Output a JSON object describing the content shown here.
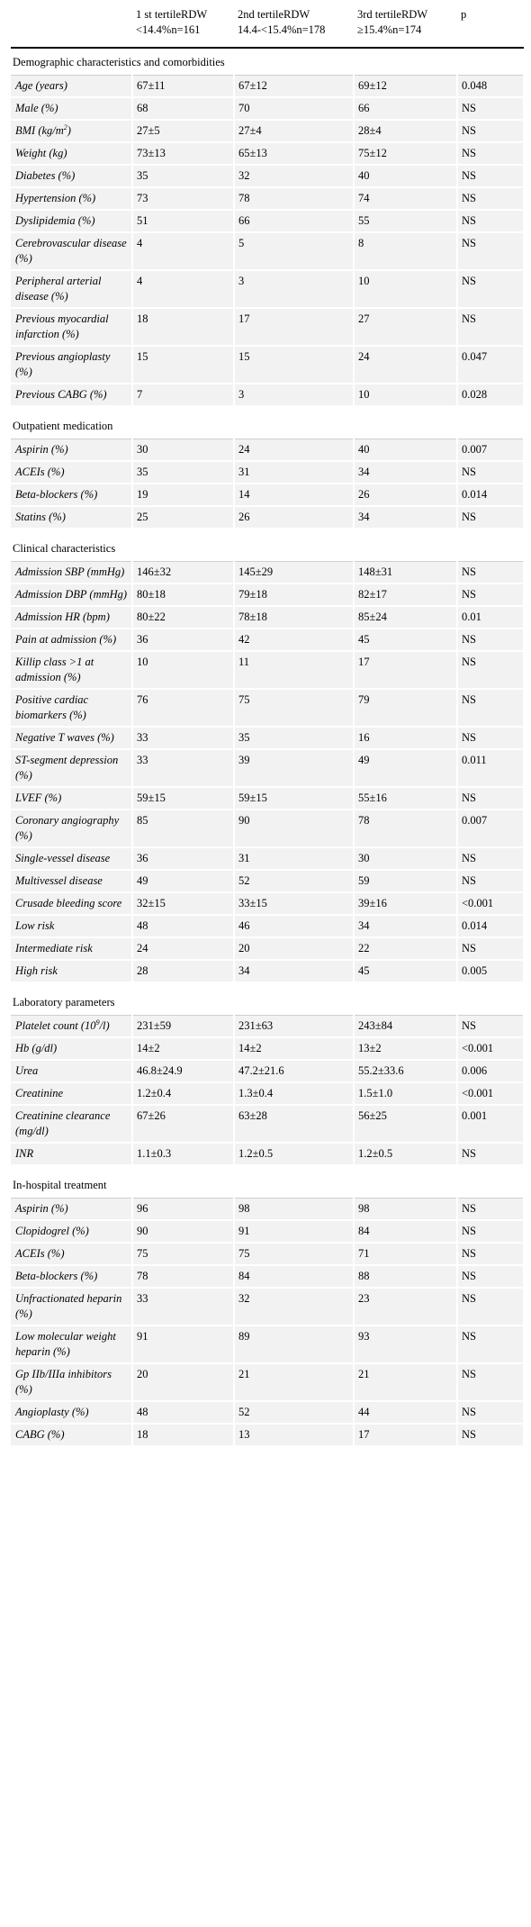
{
  "header": {
    "col1_line1": "1 st tertileRDW",
    "col1_line2": "<14.4%n=161",
    "col2_line1": "2nd tertileRDW",
    "col2_line2": "14.4-<15.4%n=178",
    "col3_line1": "3rd tertileRDW",
    "col3_line2": "≥15.4%n=174",
    "col4": "p"
  },
  "sections": [
    {
      "title": "Demographic characteristics and comorbidities",
      "rows": [
        {
          "label": "Age (years)",
          "v1": "67±11",
          "v2": "67±12",
          "v3": "69±12",
          "p": "0.048"
        },
        {
          "label": "Male (%)",
          "v1": "68",
          "v2": "70",
          "v3": "66",
          "p": "NS"
        },
        {
          "label": "BMI (kg/m",
          "sup": "2",
          "label_after": ")",
          "v1": "27±5",
          "v2": "27±4",
          "v3": "28±4",
          "p": "NS"
        },
        {
          "label": "Weight (kg)",
          "v1": "73±13",
          "v2": "65±13",
          "v3": "75±12",
          "p": "NS"
        },
        {
          "label": "Diabetes (%)",
          "v1": "35",
          "v2": "32",
          "v3": "40",
          "p": "NS"
        },
        {
          "label": "Hypertension (%)",
          "v1": "73",
          "v2": "78",
          "v3": "74",
          "p": "NS"
        },
        {
          "label": "Dyslipidemia (%)",
          "v1": "51",
          "v2": "66",
          "v3": "55",
          "p": "NS"
        },
        {
          "label": "Cerebrovascular disease (%)",
          "v1": "4",
          "v2": "5",
          "v3": "8",
          "p": "NS"
        },
        {
          "label": "Peripheral arterial disease (%)",
          "v1": "4",
          "v2": "3",
          "v3": "10",
          "p": "NS"
        },
        {
          "label": "Previous myocardial infarction (%)",
          "v1": "18",
          "v2": "17",
          "v3": "27",
          "p": "NS"
        },
        {
          "label": "Previous angioplasty (%)",
          "v1": "15",
          "v2": "15",
          "v3": "24",
          "p": "0.047"
        },
        {
          "label": "Previous CABG (%)",
          "v1": "7",
          "v2": "3",
          "v3": "10",
          "p": "0.028"
        }
      ]
    },
    {
      "title": "Outpatient medication",
      "rows": [
        {
          "label": "Aspirin (%)",
          "v1": "30",
          "v2": "24",
          "v3": "40",
          "p": "0.007"
        },
        {
          "label": "ACEIs (%)",
          "v1": "35",
          "v2": "31",
          "v3": "34",
          "p": "NS"
        },
        {
          "label": "Beta-blockers (%)",
          "v1": "19",
          "v2": "14",
          "v3": "26",
          "p": "0.014"
        },
        {
          "label": "Statins (%)",
          "v1": "25",
          "v2": "26",
          "v3": "34",
          "p": "NS"
        }
      ]
    },
    {
      "title": "Clinical characteristics",
      "rows": [
        {
          "label": "Admission SBP (mmHg)",
          "v1": "146±32",
          "v2": "145±29",
          "v3": "148±31",
          "p": "NS"
        },
        {
          "label": "Admission DBP (mmHg)",
          "v1": "80±18",
          "v2": "79±18",
          "v3": "82±17",
          "p": "NS"
        },
        {
          "label": "Admission HR (bpm)",
          "v1": "80±22",
          "v2": "78±18",
          "v3": "85±24",
          "p": "0.01"
        },
        {
          "label": "Pain at admission (%)",
          "v1": "36",
          "v2": "42",
          "v3": "45",
          "p": "NS"
        },
        {
          "label": "Killip class >1 at admission (%)",
          "v1": "10",
          "v2": "11",
          "v3": "17",
          "p": "NS"
        },
        {
          "label": "Positive cardiac biomarkers (%)",
          "v1": "76",
          "v2": "75",
          "v3": "79",
          "p": "NS"
        },
        {
          "label": "Negative T waves (%)",
          "v1": "33",
          "v2": "35",
          "v3": "16",
          "p": "NS"
        },
        {
          "label": "ST-segment depression (%)",
          "v1": "33",
          "v2": "39",
          "v3": "49",
          "p": "0.011"
        },
        {
          "label": "LVEF (%)",
          "v1": "59±15",
          "v2": "59±15",
          "v3": "55±16",
          "p": "NS"
        },
        {
          "label": "Coronary angiography (%)",
          "v1": "85",
          "v2": "90",
          "v3": "78",
          "p": "0.007"
        },
        {
          "label": "Single-vessel disease",
          "v1": "36",
          "v2": "31",
          "v3": "30",
          "p": "NS"
        },
        {
          "label": "Multivessel disease",
          "v1": "49",
          "v2": "52",
          "v3": "59",
          "p": "NS"
        },
        {
          "label": "Crusade bleeding score",
          "v1": "32±15",
          "v2": "33±15",
          "v3": "39±16",
          "p": "<0.001"
        },
        {
          "label": "Low risk",
          "v1": "48",
          "v2": "46",
          "v3": "34",
          "p": "0.014"
        },
        {
          "label": "Intermediate risk",
          "v1": "24",
          "v2": "20",
          "v3": "22",
          "p": "NS"
        },
        {
          "label": "High risk",
          "v1": "28",
          "v2": "34",
          "v3": "45",
          "p": "0.005"
        }
      ]
    },
    {
      "title": "Laboratory parameters",
      "rows": [
        {
          "label": "Platelet count (10",
          "sup": "9",
          "label_after": "/l)",
          "v1": "231±59",
          "v2": "231±63",
          "v3": "243±84",
          "p": "NS"
        },
        {
          "label": "Hb (g/dl)",
          "v1": "14±2",
          "v2": "14±2",
          "v3": "13±2",
          "p": "<0.001"
        },
        {
          "label": "Urea",
          "v1": "46.8±24.9",
          "v2": "47.2±21.6",
          "v3": "55.2±33.6",
          "p": "0.006"
        },
        {
          "label": "Creatinine",
          "v1": "1.2±0.4",
          "v2": "1.3±0.4",
          "v3": "1.5±1.0",
          "p": "<0.001"
        },
        {
          "label": "Creatinine clearance (mg/dl)",
          "v1": "67±26",
          "v2": "63±28",
          "v3": "56±25",
          "p": "0.001"
        },
        {
          "label": "INR",
          "v1": "1.1±0.3",
          "v2": "1.2±0.5",
          "v3": "1.2±0.5",
          "p": "NS"
        }
      ]
    },
    {
      "title": "In-hospital treatment",
      "rows": [
        {
          "label": "Aspirin (%)",
          "v1": "96",
          "v2": "98",
          "v3": "98",
          "p": "NS"
        },
        {
          "label": "Clopidogrel (%)",
          "v1": "90",
          "v2": "91",
          "v3": "84",
          "p": "NS"
        },
        {
          "label": "ACEIs (%)",
          "v1": "75",
          "v2": "75",
          "v3": "71",
          "p": "NS"
        },
        {
          "label": "Beta-blockers (%)",
          "v1": "78",
          "v2": "84",
          "v3": "88",
          "p": "NS"
        },
        {
          "label": "Unfractionated heparin (%)",
          "v1": "33",
          "v2": "32",
          "v3": "23",
          "p": "NS"
        },
        {
          "label": "Low molecular weight heparin (%)",
          "v1": "91",
          "v2": "89",
          "v3": "93",
          "p": "NS"
        },
        {
          "label": "Gp IIb/IIIa inhibitors (%)",
          "v1": "20",
          "v2": "21",
          "v3": "21",
          "p": "NS"
        },
        {
          "label": "Angioplasty (%)",
          "v1": "48",
          "v2": "52",
          "v3": "44",
          "p": "NS"
        },
        {
          "label": "CABG (%)",
          "v1": "18",
          "v2": "13",
          "v3": "17",
          "p": "NS"
        }
      ]
    }
  ]
}
